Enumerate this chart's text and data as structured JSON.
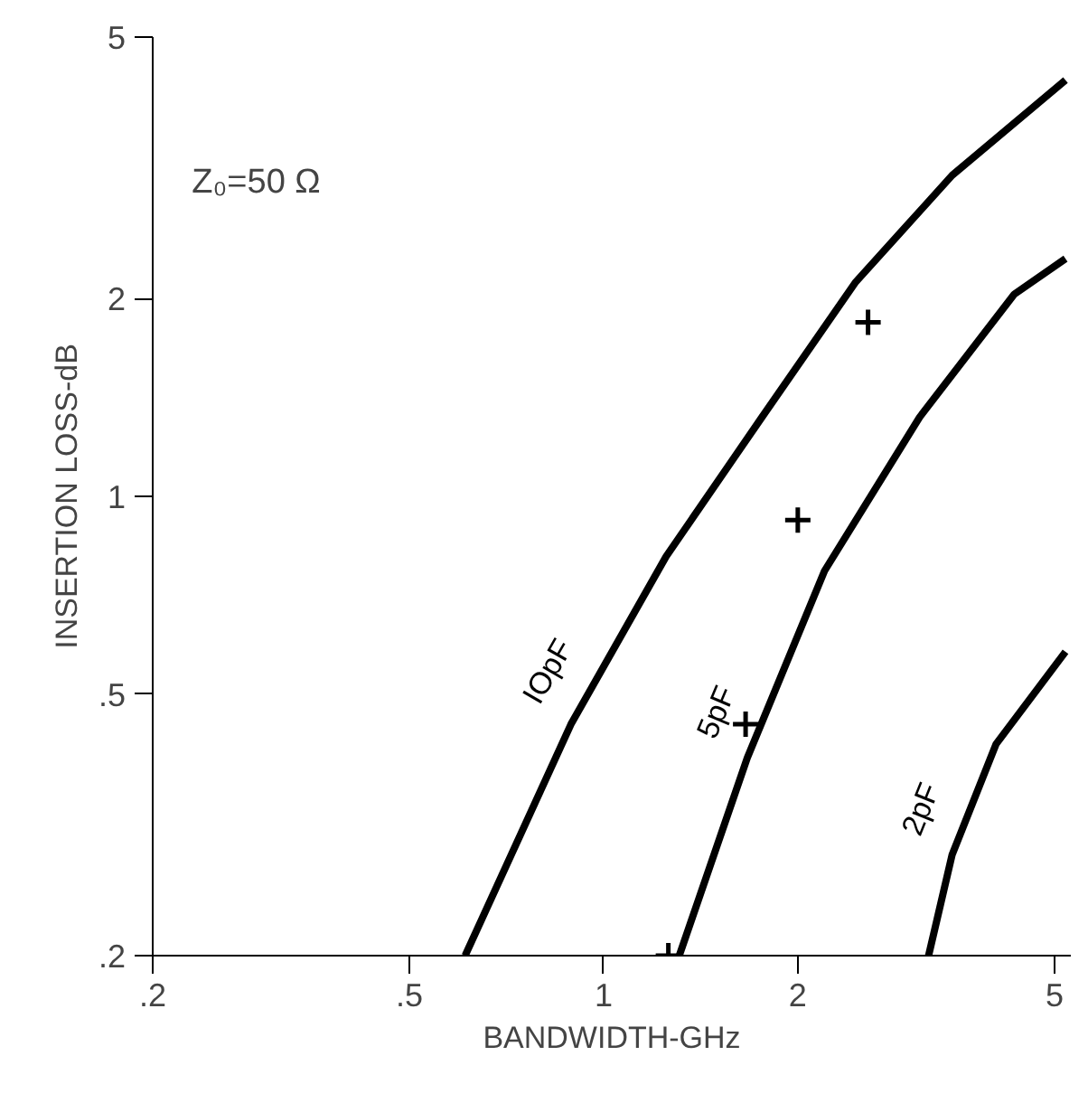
{
  "chart_data": {
    "type": "line",
    "xlabel": "BANDWIDTH-GHz",
    "ylabel": "INSERTION LOSS-dB",
    "annotations": [
      "Z₀=50 Ω"
    ],
    "log": "xy",
    "grid": false,
    "line_style": "solid",
    "xlim": [
      0.2,
      5.3
    ],
    "ylim": [
      0.2,
      5
    ],
    "xticks": [
      {
        "value": 0.2,
        "label": ".2"
      },
      {
        "value": 0.5,
        "label": ".5"
      },
      1,
      2,
      5
    ],
    "yticks": [
      {
        "value": 0.2,
        "label": ".2"
      },
      {
        "value": 0.5,
        "label": ".5"
      },
      1,
      2,
      5
    ],
    "series": [
      {
        "name": "IOpF",
        "color": "#000000",
        "x": [
          0.61,
          0.89,
          1.25,
          1.76,
          2.46,
          3.47,
          5.2
        ],
        "values": [
          0.2,
          0.45,
          0.81,
          1.32,
          2.12,
          3.08,
          4.3
        ]
      },
      {
        "name": "5pF",
        "color": "#000000",
        "x": [
          1.31,
          1.67,
          2.2,
          3.09,
          4.33,
          5.2
        ],
        "values": [
          0.2,
          0.4,
          0.77,
          1.32,
          2.03,
          2.3
        ]
      },
      {
        "name": "2pF",
        "color": "#000000",
        "x": [
          3.19,
          3.47,
          4.06,
          5.2
        ],
        "values": [
          0.2,
          0.285,
          0.42,
          0.58
        ]
      },
      {
        "type": "scatter",
        "marker": "cross",
        "color": "#000000",
        "x": [
          1.26,
          1.66,
          2.0,
          2.57
        ],
        "values": [
          0.2,
          0.45,
          0.92,
          1.84
        ]
      }
    ]
  }
}
